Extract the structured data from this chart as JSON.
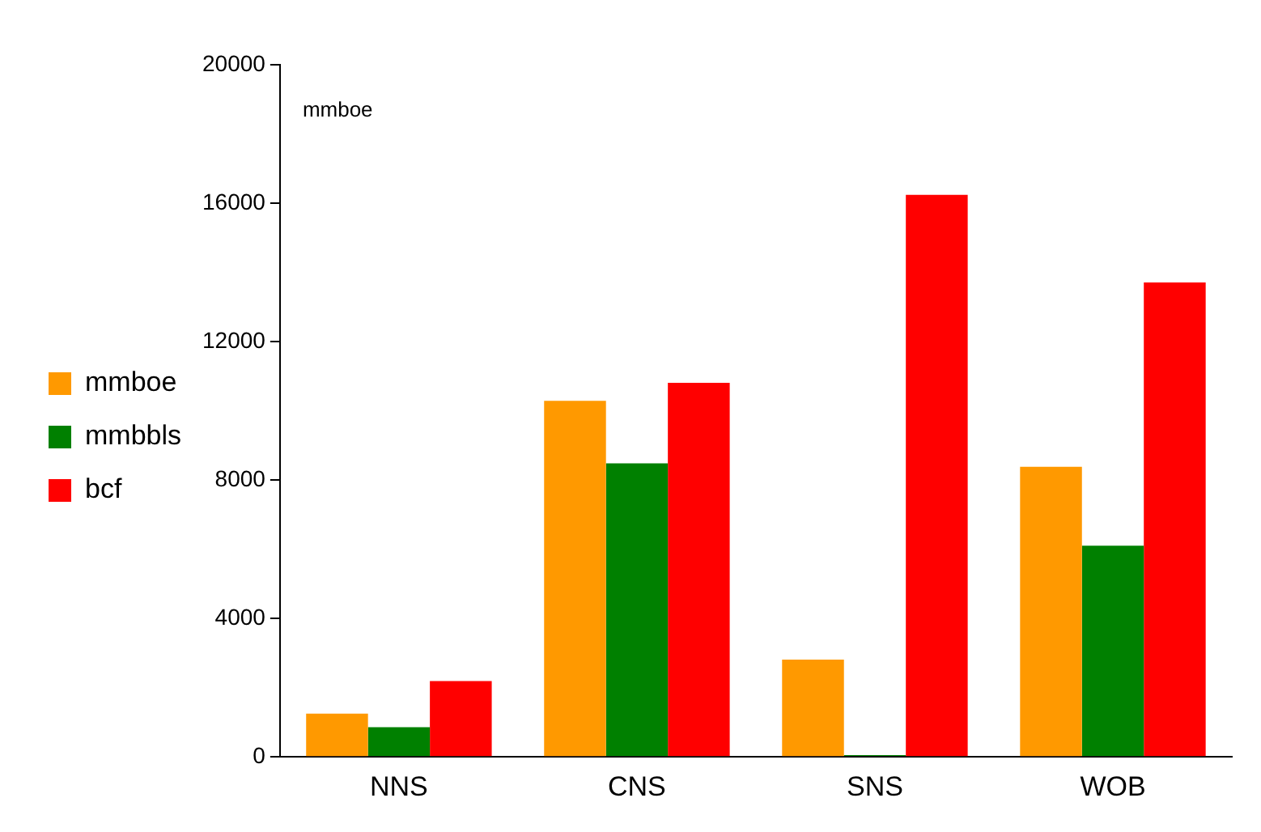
{
  "chart_data": {
    "type": "bar",
    "annotations": [
      "mmboe"
    ],
    "categories": [
      "NNS",
      "CNS",
      "SNS",
      "WOB"
    ],
    "series": [
      {
        "name": "mmboe",
        "color": "#ff9900",
        "values": [
          1250,
          10290,
          2810,
          8380
        ]
      },
      {
        "name": "mmbbls",
        "color": "#008000",
        "values": [
          860,
          8480,
          50,
          6100
        ]
      },
      {
        "name": "bcf",
        "color": "#ff0000",
        "values": [
          2190,
          10810,
          16240,
          13710
        ]
      }
    ],
    "ylim": [
      0,
      20000
    ],
    "yticks": [
      0,
      4000,
      8000,
      12000,
      16000,
      20000
    ],
    "grid": false,
    "legend": "left"
  }
}
